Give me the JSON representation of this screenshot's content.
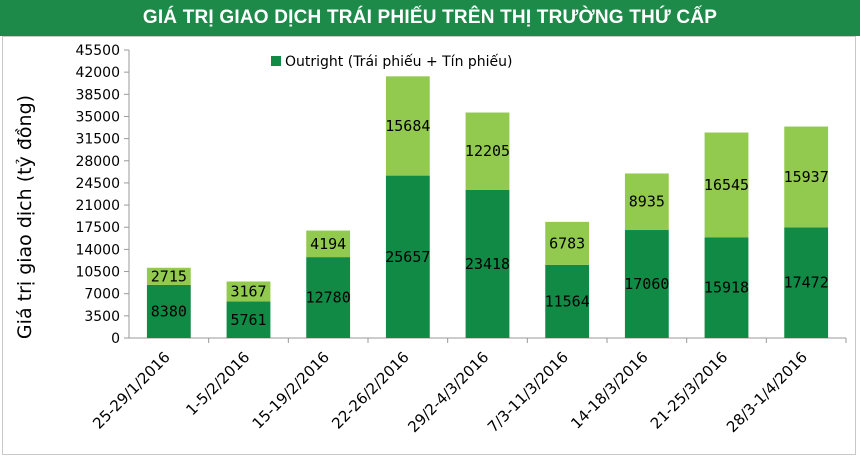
{
  "header": {
    "title": "GIÁ TRỊ GIAO DỊCH TRÁI PHIẾU TRÊN THỊ TRƯỜNG THỨ CẤP"
  },
  "colors": {
    "banner": "#1e8a49",
    "dark_green": "#118a46",
    "light_green": "#92c94f",
    "axis": "#9a9a9a"
  },
  "chart_data": {
    "type": "bar",
    "stacked": true,
    "title": "GIÁ TRỊ GIAO DỊCH TRÁI PHIẾU TRÊN THỊ TRƯỜNG THỨ CẤP",
    "xlabel": "",
    "ylabel": "Giá trị giao dịch (tỷ đồng)",
    "ylim": [
      0,
      45500
    ],
    "yticks": [
      0,
      3500,
      7000,
      10500,
      14000,
      17500,
      21000,
      24500,
      28000,
      31500,
      35000,
      38500,
      42000,
      45500
    ],
    "grid": false,
    "legend": {
      "position": "top",
      "entries": [
        "Outright (Trái phiếu + Tín phiếu)"
      ]
    },
    "categories": [
      "25-29/1/2016",
      "1-5/2/2016",
      "15-19/2/2016",
      "22-26/2/2016",
      "29/2-4/3/2016",
      "7/3-11/3/2016",
      "14-18/3/2016",
      "21-25/3/2016",
      "28/3-1/4/2016"
    ],
    "series": [
      {
        "name": "Outright (Trái phiếu + Tín phiếu)",
        "color": "#118a46",
        "values": [
          8380,
          5761,
          12780,
          25657,
          23418,
          11564,
          17060,
          15918,
          17472
        ]
      },
      {
        "color": "#92c94f",
        "values": [
          2715,
          3167,
          4194,
          15684,
          12205,
          6783,
          8935,
          16545,
          15937
        ]
      }
    ]
  }
}
